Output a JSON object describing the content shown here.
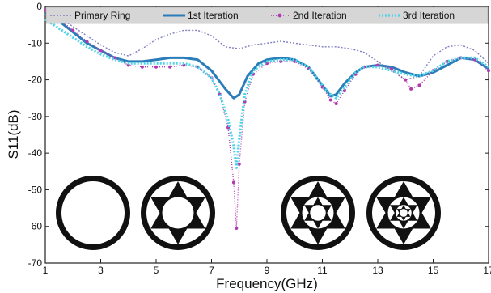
{
  "chart_data": {
    "type": "line",
    "title": "",
    "xlabel": "Frequency(GHz)",
    "ylabel": "S11(dB)",
    "xlim": [
      1,
      17
    ],
    "ylim": [
      -70,
      0
    ],
    "xticks": [
      1,
      3,
      5,
      7,
      9,
      11,
      13,
      15,
      17
    ],
    "yticks": [
      0,
      -10,
      -20,
      -30,
      -40,
      -50,
      -60,
      -70
    ],
    "xtick_labels": [
      "1",
      "3",
      "5",
      "7",
      "9",
      "11",
      "13",
      "15",
      "17"
    ],
    "ytick_labels": [
      "0",
      "-10",
      "-20",
      "-30",
      "-40",
      "-50",
      "-60",
      "-70"
    ],
    "grid": false,
    "legend_position": "top",
    "series": [
      {
        "name": "Primary Ring",
        "color": "#8080c0",
        "style": "dotted",
        "x": [
          1,
          1.5,
          2,
          2.5,
          3,
          3.5,
          4,
          4.5,
          5,
          5.5,
          6,
          6.5,
          7,
          7.5,
          8,
          8.5,
          9,
          9.5,
          10,
          10.5,
          11,
          11.5,
          12,
          12.5,
          13,
          13.5,
          14,
          14.5,
          15,
          15.5,
          16,
          16.5,
          17
        ],
        "y": [
          -1,
          -3,
          -5.5,
          -8,
          -10.5,
          -12.5,
          -13.5,
          -11.5,
          -9,
          -7.5,
          -6.5,
          -6.5,
          -8,
          -11,
          -11.5,
          -10.5,
          -10,
          -9.5,
          -10,
          -10.5,
          -11,
          -11,
          -11.5,
          -12.5,
          -15,
          -17.5,
          -20,
          -19,
          -13.5,
          -11,
          -10.5,
          -12,
          -15.5
        ]
      },
      {
        "name": "1st Iteration",
        "color": "#2a7db8",
        "style": "solid",
        "x": [
          1,
          1.5,
          2,
          2.5,
          3,
          3.5,
          4,
          4.5,
          5,
          5.5,
          6,
          6.5,
          7,
          7.5,
          7.8,
          8,
          8.3,
          8.7,
          9,
          9.5,
          10,
          10.5,
          11,
          11.3,
          11.5,
          11.8,
          12.2,
          12.5,
          13,
          13.5,
          14,
          14.5,
          15,
          15.5,
          16,
          16.5,
          17
        ],
        "y": [
          -2,
          -4,
          -7,
          -10,
          -12,
          -14,
          -15,
          -15,
          -14.5,
          -14,
          -14,
          -14.5,
          -17.5,
          -22.5,
          -25,
          -24,
          -19,
          -15.5,
          -14.5,
          -14,
          -14.5,
          -16.5,
          -21.5,
          -24.5,
          -24,
          -21,
          -18,
          -16.5,
          -16,
          -16.5,
          -18,
          -19,
          -18,
          -16,
          -14,
          -14.5,
          -17
        ]
      },
      {
        "name": "2nd Iteration",
        "color": "#b03ab0",
        "style": "dashdot",
        "marker": true,
        "x": [
          1,
          1.5,
          2,
          2.5,
          3,
          3.5,
          4,
          4.5,
          5,
          5.5,
          6,
          6.5,
          7,
          7.3,
          7.6,
          7.8,
          7.9,
          8,
          8.2,
          8.5,
          9,
          9.5,
          10,
          10.5,
          11,
          11.3,
          11.5,
          11.8,
          12.2,
          12.5,
          13,
          13.5,
          14,
          14.2,
          14.5,
          15,
          15.5,
          16,
          16.5,
          17
        ],
        "y": [
          -1,
          -3.5,
          -6.5,
          -9.5,
          -12,
          -14,
          -16,
          -16.5,
          -16.5,
          -16.5,
          -16,
          -16.5,
          -19.5,
          -24,
          -33,
          -48,
          -60.5,
          -43,
          -26,
          -18.5,
          -15.5,
          -15,
          -15,
          -17,
          -22,
          -25.5,
          -26.5,
          -23,
          -18.5,
          -16.5,
          -16,
          -17,
          -20,
          -22.5,
          -21.5,
          -17.5,
          -15,
          -14,
          -14.5,
          -17.5
        ]
      },
      {
        "name": "3rd Iteration",
        "color": "#4dd4e8",
        "style": "dotted",
        "x": [
          1,
          1.5,
          2,
          2.5,
          3,
          3.5,
          4,
          4.5,
          5,
          5.5,
          6,
          6.5,
          7,
          7.3,
          7.6,
          7.8,
          7.9,
          8,
          8.2,
          8.5,
          9,
          9.5,
          10,
          10.5,
          11,
          11.3,
          11.5,
          11.8,
          12.2,
          12.5,
          13,
          13.5,
          14,
          14.5,
          15,
          15.5,
          16,
          16.5,
          17
        ],
        "y": [
          -3.5,
          -6,
          -8.5,
          -11,
          -13,
          -14.5,
          -15.5,
          -15.5,
          -15.5,
          -15.5,
          -15.5,
          -16.5,
          -19.5,
          -24,
          -31,
          -38,
          -44,
          -36,
          -24,
          -17.5,
          -15,
          -14.5,
          -14.5,
          -16.5,
          -21.5,
          -24,
          -25,
          -22,
          -18,
          -16.5,
          -16.5,
          -17.5,
          -18.5,
          -19,
          -17.5,
          -15,
          -14,
          -14,
          -16.5
        ]
      }
    ]
  },
  "inset_shapes": [
    {
      "name": "primary-ring-shape",
      "level": 0
    },
    {
      "name": "first-iteration-shape",
      "level": 1
    },
    {
      "name": "second-iteration-shape",
      "level": 2
    },
    {
      "name": "third-iteration-shape",
      "level": 3
    }
  ]
}
